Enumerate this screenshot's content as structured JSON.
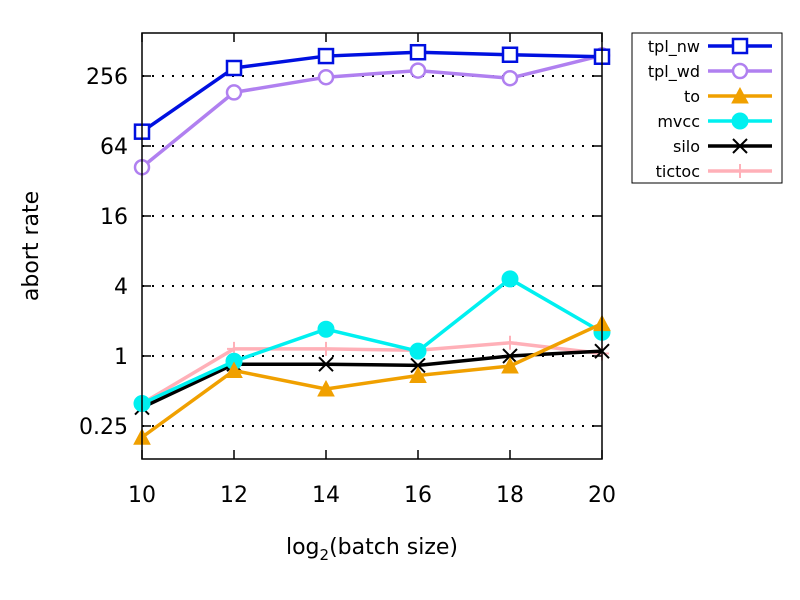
{
  "chart_data": {
    "type": "line",
    "xlabel_main": "log",
    "xlabel_sub": "2",
    "xlabel_rest": "(batch size)",
    "ylabel": "abort rate",
    "x": [
      10,
      12,
      14,
      16,
      18,
      20
    ],
    "x_ticks": [
      "10",
      "12",
      "14",
      "16",
      "18",
      "20"
    ],
    "y_ticks": [
      0.25,
      1,
      4,
      16,
      64,
      256
    ],
    "y_tick_labels": [
      "0.25",
      "1",
      "4",
      "16",
      "64",
      "256"
    ],
    "y_scale": "log2",
    "ylim": [
      0.13,
      600
    ],
    "xlim": [
      10,
      20
    ],
    "grid": "dotted-horizontal",
    "legend_position": "outside-right",
    "series": [
      {
        "name": "tpl_nw",
        "color": "#0010e0",
        "marker": "square",
        "values": [
          85,
          300,
          380,
          410,
          390,
          375
        ]
      },
      {
        "name": "tpl_wd",
        "color": "#b080f0",
        "marker": "circle",
        "values": [
          42,
          185,
          250,
          285,
          245,
          385
        ]
      },
      {
        "name": "to",
        "color": "#f0a000",
        "marker": "triangle",
        "values": [
          0.2,
          0.75,
          0.52,
          0.68,
          0.82,
          1.9
        ]
      },
      {
        "name": "mvcc",
        "color": "#00f0f0",
        "marker": "filled-circle",
        "values": [
          0.39,
          0.9,
          1.7,
          1.1,
          4.6,
          1.6
        ]
      },
      {
        "name": "silo",
        "color": "#000000",
        "marker": "x",
        "values": [
          0.36,
          0.85,
          0.85,
          0.83,
          1.0,
          1.1
        ]
      },
      {
        "name": "tictoc",
        "color": "#ffb0b8",
        "marker": "plus",
        "values": [
          0.39,
          1.15,
          1.15,
          1.12,
          1.3,
          1.05
        ]
      }
    ]
  }
}
